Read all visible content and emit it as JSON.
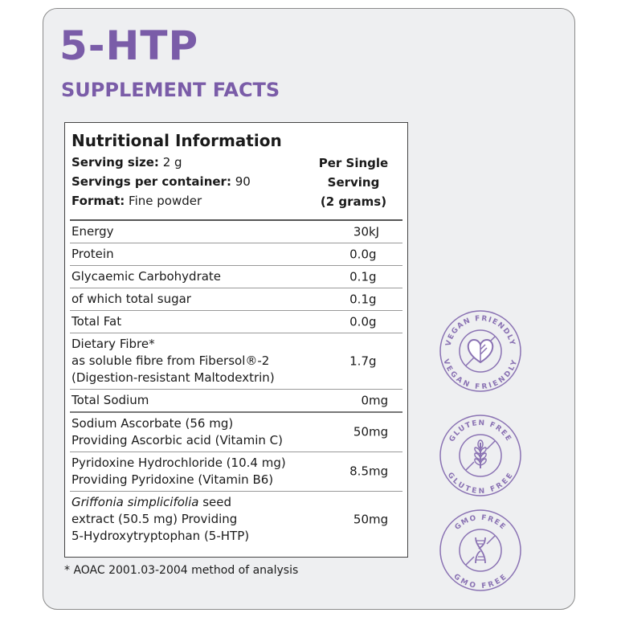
{
  "title": "5-HTP",
  "subtitle": "SUPPLEMENT FACTS",
  "panel": {
    "heading": "Nutritional Information",
    "serving_size_label": "Serving size:",
    "serving_size": "2 g",
    "servings_label": "Servings per container:",
    "servings": "90",
    "format_label": "Format:",
    "format": "Fine powder",
    "per_serving": [
      "Per Single",
      "Serving",
      "(2 grams)"
    ],
    "rows": [
      {
        "name": "Energy",
        "value": "30",
        "unit": "kJ"
      },
      {
        "name": "Protein",
        "value": "0.0",
        "unit": "g"
      },
      {
        "name": "Glycaemic Carbohydrate",
        "value": "0.1",
        "unit": "g"
      },
      {
        "name": "of which total sugar",
        "value": "0.1",
        "unit": "g"
      },
      {
        "name": "Total Fat",
        "value": "0.0",
        "unit": "g"
      },
      {
        "lines": [
          "Dietary Fibre*",
          " as soluble fibre from Fibersol®-2",
          "(Digestion-resistant Maltodextrin)"
        ],
        "value": "1.7",
        "unit": "g"
      },
      {
        "name": "Total Sodium",
        "value": "0",
        "unit": "mg"
      },
      {
        "lines": [
          "Sodium Ascorbate (56 mg)",
          "Providing Ascorbic acid (Vitamin C)"
        ],
        "value": "50",
        "unit": "mg"
      },
      {
        "lines": [
          "Pyridoxine Hydrochloride (10.4 mg)",
          "Providing Pyridoxine (Vitamin B6)"
        ],
        "value": "8.5",
        "unit": "mg"
      },
      {
        "italic": "Griffonia simplicifolia",
        "lines": [
          " seed",
          "extract (50.5 mg) Providing",
          "5-Hydroxytryptophan (5-HTP)"
        ],
        "value": "50",
        "unit": "mg"
      }
    ]
  },
  "footnote": "* AOAC 2001.03-2004 method of analysis",
  "badges": [
    {
      "text": "VEGAN FRIENDLY",
      "icon": "heart-leaf-icon"
    },
    {
      "text": "GLUTEN FREE",
      "icon": "wheat-icon"
    },
    {
      "text": "GMO FREE",
      "icon": "dna-icon"
    }
  ],
  "colors": {
    "accent": "#7a5ca8",
    "badge": "#8a72b3"
  }
}
